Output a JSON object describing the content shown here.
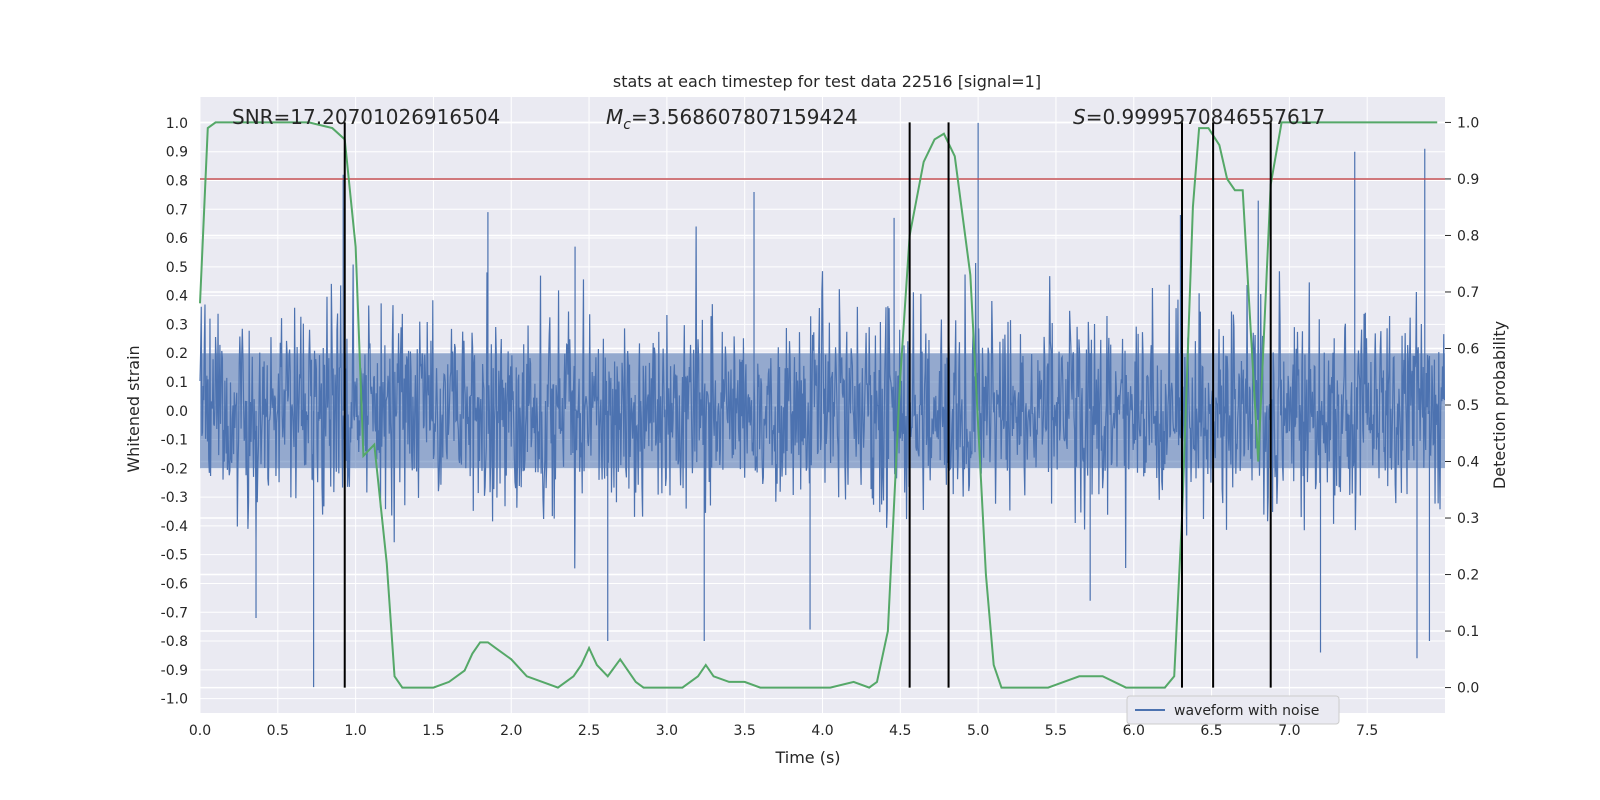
{
  "chart_data": {
    "type": "line",
    "title": "stats at each timestep for test data 22516 [signal=1]",
    "xlabel": "Time (s)",
    "ylabel": "Whitened strain",
    "ylabel_right": "Detection probability",
    "xlim": [
      0.0,
      8.0
    ],
    "ylim": [
      -1.05,
      1.09
    ],
    "ylim_right": [
      -0.045,
      1.045
    ],
    "xticks": [
      "0.0",
      "0.5",
      "1.0",
      "1.5",
      "2.0",
      "2.5",
      "3.0",
      "3.5",
      "4.0",
      "4.5",
      "5.0",
      "5.5",
      "6.0",
      "6.5",
      "7.0",
      "7.5"
    ],
    "yticks": [
      "-1.0",
      "-0.9",
      "-0.8",
      "-0.7",
      "-0.6",
      "-0.5",
      "-0.4",
      "-0.3",
      "-0.2",
      "-0.1",
      "0.0",
      "0.1",
      "0.2",
      "0.3",
      "0.4",
      "0.5",
      "0.6",
      "0.7",
      "0.8",
      "0.9",
      "1.0"
    ],
    "yticks_right": [
      "0.0",
      "0.1",
      "0.2",
      "0.3",
      "0.4",
      "0.5",
      "0.6",
      "0.7",
      "0.8",
      "0.9",
      "1.0"
    ],
    "annotations": {
      "snr": "SNR=17.20701026916504",
      "mc_symbol": "M",
      "mc_sub": "c",
      "mc_value": "=3.568607807159424",
      "s_symbol": "S",
      "s_value": "=0.9999570846557617"
    },
    "legend": {
      "label": "waveform with noise",
      "position": "lower-right"
    },
    "threshold": {
      "value": 0.9,
      "axis": "right",
      "color": "#c44e52"
    },
    "vertical_lines": [
      0.93,
      4.56,
      4.81,
      6.31,
      6.51,
      6.88
    ],
    "series": [
      {
        "name": "waveform with noise",
        "color": "#4c72b0",
        "axis": "left",
        "generator": {
          "duration": 8.0,
          "n_samples": 2000,
          "noise_sigma": 0.17,
          "clip": 0.97,
          "seed": 22516
        },
        "spikes": [
          {
            "t": 0.92,
            "v": 0.82
          },
          {
            "t": 0.73,
            "v": -0.96
          },
          {
            "t": 0.36,
            "v": -0.72
          },
          {
            "t": 1.85,
            "v": 0.69
          },
          {
            "t": 2.41,
            "v": 0.57
          },
          {
            "t": 3.56,
            "v": 0.76
          },
          {
            "t": 3.92,
            "v": -0.76
          },
          {
            "t": 5.0,
            "v": 1.0
          },
          {
            "t": 4.46,
            "v": 0.67
          },
          {
            "t": 6.8,
            "v": 0.73
          },
          {
            "t": 7.42,
            "v": 0.9
          },
          {
            "t": 7.87,
            "v": 0.91
          },
          {
            "t": 7.9,
            "v": -0.8
          },
          {
            "t": 7.2,
            "v": -0.84
          },
          {
            "t": 7.82,
            "v": -0.86
          },
          {
            "t": 6.3,
            "v": 0.68
          },
          {
            "t": 5.72,
            "v": -0.66
          },
          {
            "t": 3.24,
            "v": -0.8
          },
          {
            "t": 2.62,
            "v": -0.8
          },
          {
            "t": 6.88,
            "v": 0.7
          }
        ]
      },
      {
        "name": "detection probability",
        "color": "#55a868",
        "axis": "right",
        "x": [
          0.0,
          0.05,
          0.1,
          0.2,
          0.3,
          0.5,
          0.7,
          0.85,
          0.93,
          1.0,
          1.05,
          1.12,
          1.2,
          1.25,
          1.3,
          1.4,
          1.5,
          1.6,
          1.7,
          1.75,
          1.8,
          1.85,
          1.9,
          2.0,
          2.1,
          2.2,
          2.3,
          2.4,
          2.45,
          2.5,
          2.55,
          2.62,
          2.7,
          2.8,
          2.85,
          2.95,
          3.1,
          3.2,
          3.25,
          3.3,
          3.4,
          3.5,
          3.6,
          3.7,
          3.8,
          3.9,
          4.05,
          4.2,
          4.3,
          4.35,
          4.42,
          4.5,
          4.56,
          4.65,
          4.72,
          4.78,
          4.85,
          4.95,
          5.05,
          5.1,
          5.15,
          5.3,
          5.45,
          5.55,
          5.65,
          5.7,
          5.8,
          5.95,
          6.1,
          6.2,
          6.26,
          6.31,
          6.38,
          6.42,
          6.48,
          6.55,
          6.6,
          6.65,
          6.7,
          6.8,
          6.88,
          6.95,
          7.0,
          7.2,
          7.5,
          7.95
        ],
        "y": [
          0.68,
          0.99,
          1.0,
          1.0,
          1.0,
          1.0,
          1.0,
          0.99,
          0.97,
          0.78,
          0.41,
          0.43,
          0.22,
          0.02,
          0.0,
          0.0,
          0.0,
          0.01,
          0.03,
          0.06,
          0.08,
          0.08,
          0.07,
          0.05,
          0.02,
          0.01,
          0.0,
          0.02,
          0.04,
          0.07,
          0.04,
          0.02,
          0.05,
          0.01,
          0.0,
          0.0,
          0.0,
          0.02,
          0.04,
          0.02,
          0.01,
          0.01,
          0.0,
          0.0,
          0.0,
          0.0,
          0.0,
          0.01,
          0.0,
          0.01,
          0.1,
          0.55,
          0.8,
          0.93,
          0.97,
          0.98,
          0.94,
          0.73,
          0.2,
          0.04,
          0.0,
          0.0,
          0.0,
          0.01,
          0.02,
          0.02,
          0.02,
          0.0,
          0.0,
          0.0,
          0.02,
          0.3,
          0.85,
          0.99,
          0.99,
          0.96,
          0.9,
          0.88,
          0.88,
          0.4,
          0.89,
          1.0,
          1.0,
          1.0,
          1.0,
          1.0
        ]
      }
    ]
  }
}
